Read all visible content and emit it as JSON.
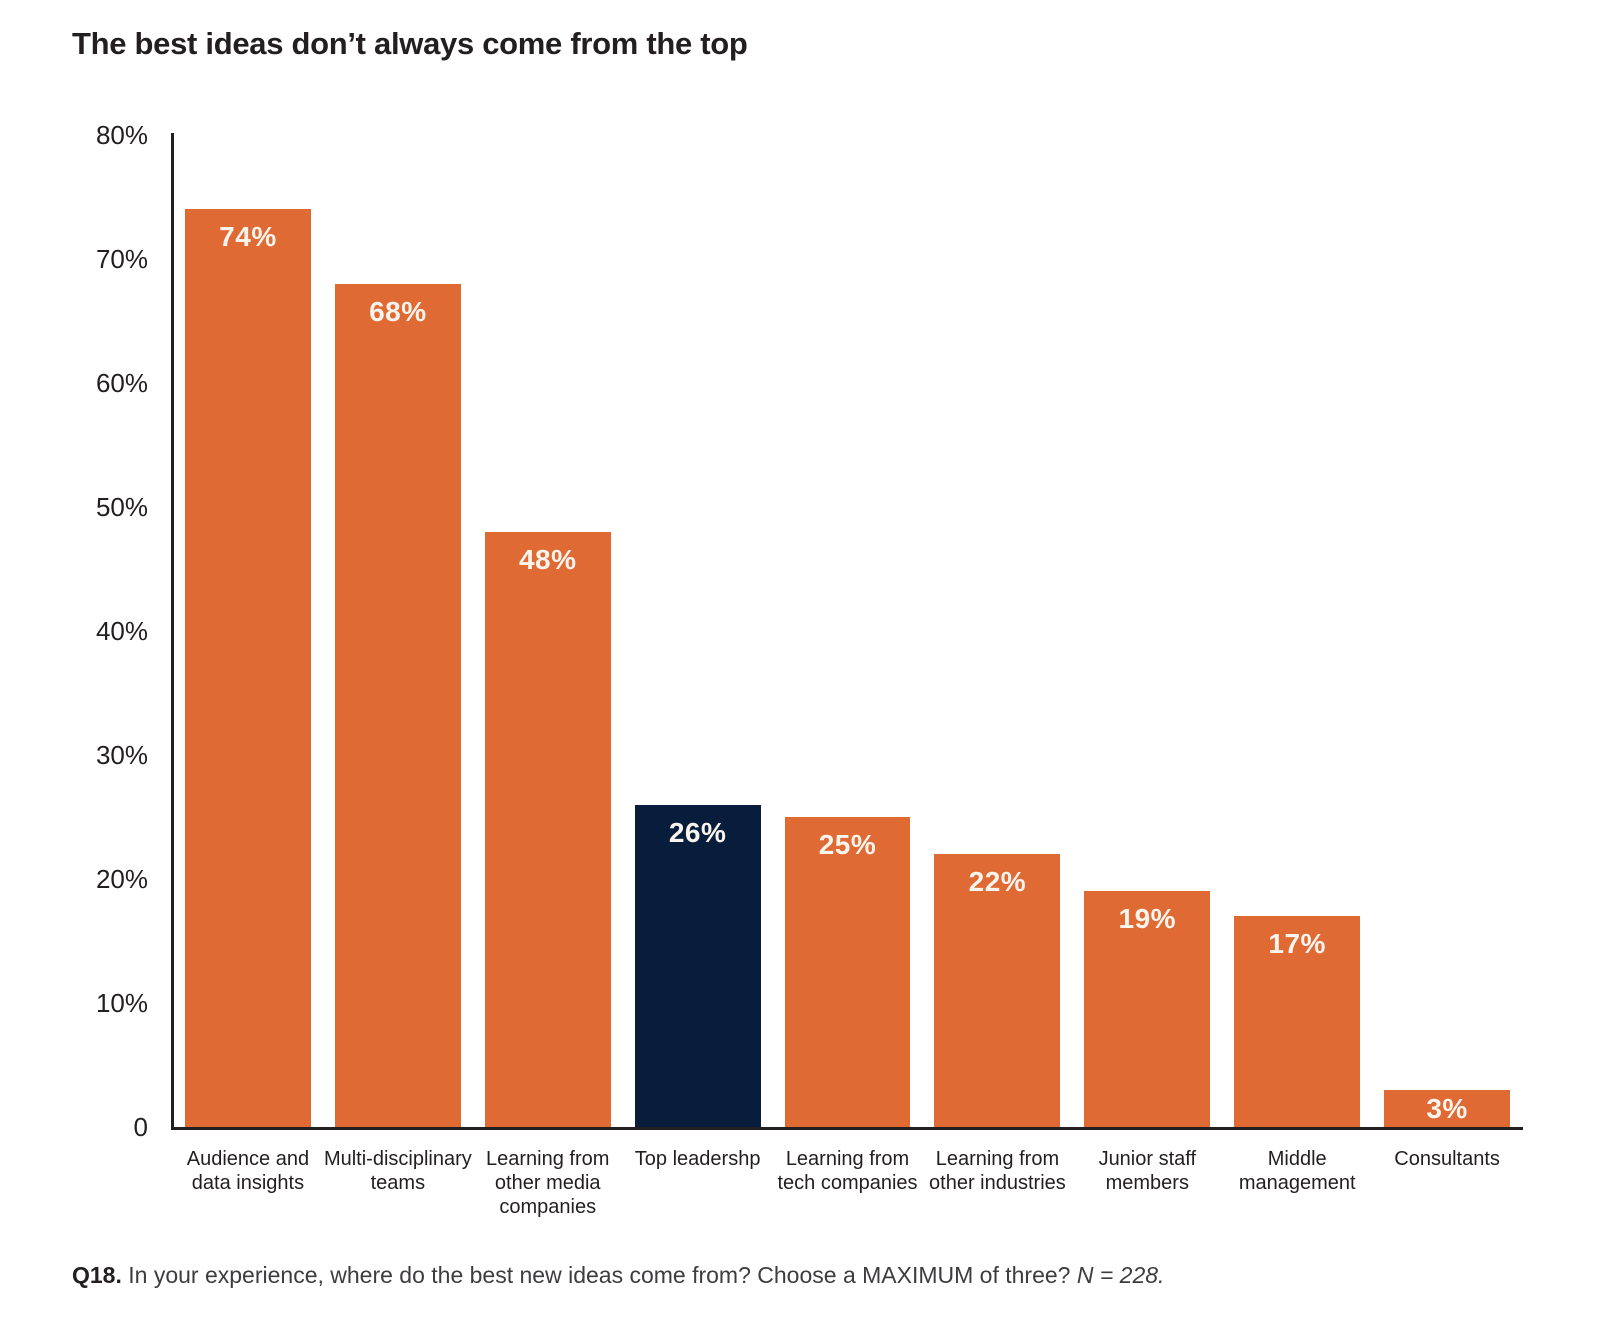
{
  "title": "The best ideas don’t always come from the top",
  "caption": {
    "prefix": "Q18.",
    "question": "In your experience, where do the best new ideas come from? Choose a MAXIMUM of three?",
    "sample_size": "N = 228."
  },
  "colors": {
    "bar_default": "#E06A33",
    "bar_highlight": "#081C3B",
    "axis": "#231F20",
    "value_label": "#F9F4ED",
    "title_text": "#231F20",
    "caption_text": "#3E3C3F"
  },
  "chart_data": {
    "type": "bar",
    "title": "The best ideas don’t always come from the top",
    "categories": [
      "Audience and data insights",
      "Multi-disciplinary teams",
      "Learning from other media companies",
      "Top leadershp",
      "Learning from tech companies",
      "Learning from other industries",
      "Junior staff members",
      "Middle management",
      "Consultants"
    ],
    "category_lines": [
      [
        "Audience and",
        "data insights"
      ],
      [
        "Multi-disciplinary",
        "teams"
      ],
      [
        "Learning from",
        "other media",
        "companies"
      ],
      [
        "Top leadershp"
      ],
      [
        "Learning from",
        "tech companies"
      ],
      [
        "Learning from",
        "other industries"
      ],
      [
        "Junior staff",
        "members"
      ],
      [
        "Middle",
        "management"
      ],
      [
        "Consultants"
      ]
    ],
    "values": [
      74,
      68,
      48,
      26,
      25,
      22,
      19,
      17,
      3
    ],
    "value_labels": [
      "74%",
      "68%",
      "48%",
      "26%",
      "25%",
      "22%",
      "19%",
      "17%",
      "3%"
    ],
    "highlight_index": 3,
    "xlabel": "",
    "ylabel": "",
    "ylim": [
      0,
      80
    ],
    "grid": false,
    "legend": false,
    "y_ticks": [
      {
        "label": "80%",
        "value": 80
      },
      {
        "label": "70%",
        "value": 70
      },
      {
        "label": "60%",
        "value": 60
      },
      {
        "label": "50%",
        "value": 50
      },
      {
        "label": "40%",
        "value": 40
      },
      {
        "label": "30%",
        "value": 30
      },
      {
        "label": "20%",
        "value": 20
      },
      {
        "label": "10%",
        "value": 10
      },
      {
        "label": "0",
        "value": 0
      }
    ]
  }
}
